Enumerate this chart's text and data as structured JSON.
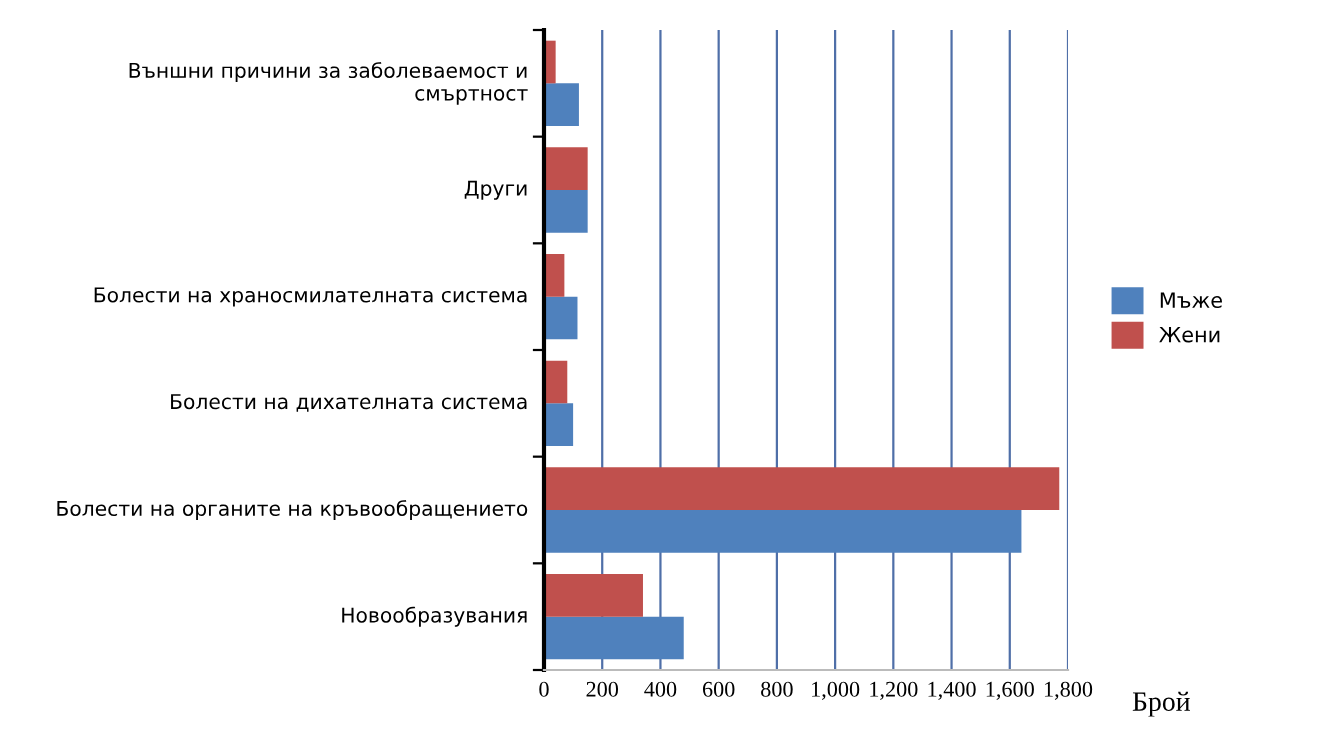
{
  "chart_data": {
    "type": "bar",
    "orientation": "horizontal",
    "categories": [
      "Външни причини за заболеваемост и\nсмъртност",
      "Други",
      "Болести на храносмилателната система",
      "Болести на дихателната система",
      "Болести на органите на кръвообращението",
      "Новообразувания"
    ],
    "series": [
      {
        "name": "Мъже",
        "color": "#4f81bd",
        "values": [
          120,
          150,
          115,
          100,
          1640,
          480
        ]
      },
      {
        "name": "Жени",
        "color": "#c0504d",
        "values": [
          40,
          150,
          70,
          80,
          1770,
          340
        ]
      }
    ],
    "xlabel": "Брой",
    "xlim": [
      0,
      1800
    ],
    "xticks": [
      0,
      200,
      400,
      600,
      800,
      {
        "value": 1000,
        "label": "1,000"
      },
      {
        "value": 1200,
        "label": "1,200"
      },
      {
        "value": 1400,
        "label": "1,400"
      },
      {
        "value": 1600,
        "label": "1,600"
      },
      {
        "value": 1800,
        "label": "1,800"
      }
    ],
    "grid": "x",
    "legend": "right"
  }
}
